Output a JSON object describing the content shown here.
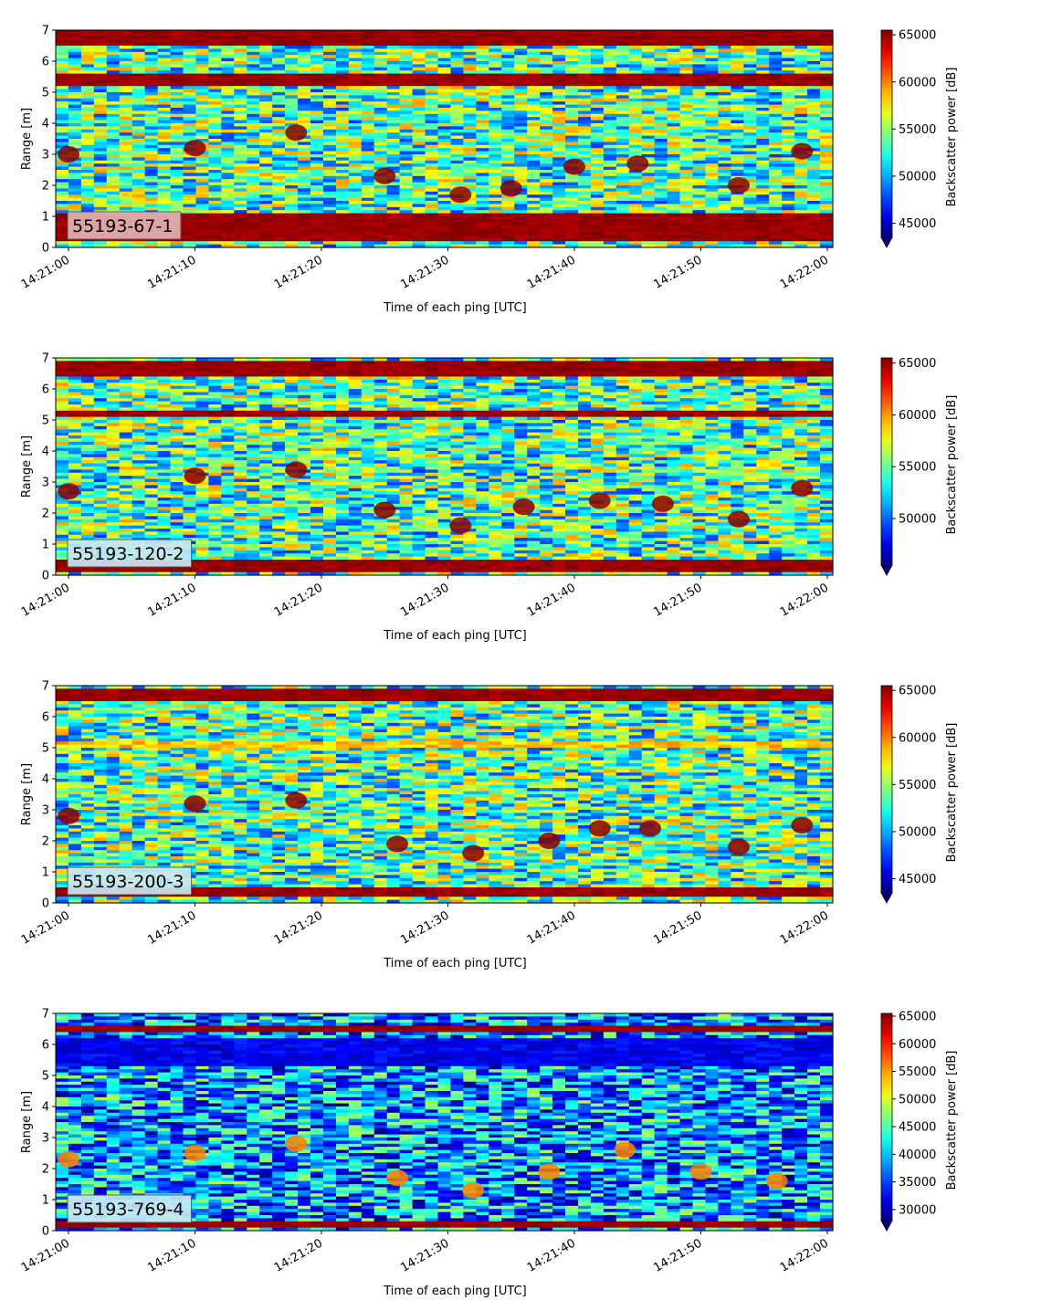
{
  "figure": {
    "x_axis_label": "Time of each ping [UTC]",
    "y_axis_label": "Range [m]",
    "colorbar_label": "Backscatter power [dB]",
    "colormap": "jet",
    "x_tick_labels": [
      "14:21:00",
      "14:21:10",
      "14:21:20",
      "14:21:30",
      "14:21:40",
      "14:21:50",
      "14:22:00"
    ],
    "y_tick_labels": [
      "0",
      "1",
      "2",
      "3",
      "4",
      "5",
      "6",
      "7"
    ]
  },
  "chart_data": [
    {
      "type": "heatmap",
      "label": "55193-67-1",
      "label_box_color": "#e2b3b3",
      "xlabel": "Time of each ping [UTC]",
      "ylabel": "Range [m]",
      "xlim": [
        "14:21:00",
        "14:22:00"
      ],
      "ylim": [
        0,
        7
      ],
      "colorbar": {
        "label": "Backscatter power [dB]",
        "min": 43500,
        "max": 65500,
        "ticks": [
          45000,
          50000,
          55000,
          60000,
          65000
        ],
        "extend": "min"
      },
      "bands": [
        {
          "range_m": [
            0.25,
            1.1
          ],
          "level": "high",
          "description_value": 65000
        },
        {
          "range_m": [
            5.2,
            5.6
          ],
          "level": "high",
          "description_value": 64000
        },
        {
          "range_m": [
            6.55,
            7.0
          ],
          "level": "high",
          "description_value": 65000
        }
      ],
      "scatter_layer": [
        {
          "time": "14:21:00",
          "range": 3.0
        },
        {
          "time": "14:21:10",
          "range": 3.2
        },
        {
          "time": "14:21:18",
          "range": 3.7
        },
        {
          "time": "14:21:25",
          "range": 2.3
        },
        {
          "time": "14:21:31",
          "range": 1.7
        },
        {
          "time": "14:21:35",
          "range": 1.9
        },
        {
          "time": "14:21:40",
          "range": 2.6
        },
        {
          "time": "14:21:45",
          "range": 2.7
        },
        {
          "time": "14:21:53",
          "range": 2.0
        },
        {
          "time": "14:21:58",
          "range": 3.1
        }
      ]
    },
    {
      "type": "heatmap",
      "label": "55193-120-2",
      "label_box_color": "#c8e8f5",
      "xlabel": "Time of each ping [UTC]",
      "ylabel": "Range [m]",
      "xlim": [
        "14:21:00",
        "14:22:00"
      ],
      "ylim": [
        0,
        7
      ],
      "colorbar": {
        "label": "Backscatter power [dB]",
        "min": 45500,
        "max": 65500,
        "ticks": [
          50000,
          55000,
          60000,
          65000
        ],
        "extend": "min"
      },
      "bands": [
        {
          "range_m": [
            0.1,
            0.5
          ],
          "level": "high",
          "description_value": 65000
        },
        {
          "range_m": [
            5.1,
            5.3
          ],
          "level": "high",
          "description_value": 63000
        },
        {
          "range_m": [
            6.4,
            6.9
          ],
          "level": "high",
          "description_value": 65000
        }
      ],
      "scatter_layer": [
        {
          "time": "14:21:00",
          "range": 2.7
        },
        {
          "time": "14:21:10",
          "range": 3.2
        },
        {
          "time": "14:21:18",
          "range": 3.4
        },
        {
          "time": "14:21:25",
          "range": 2.1
        },
        {
          "time": "14:21:31",
          "range": 1.6
        },
        {
          "time": "14:21:36",
          "range": 2.2
        },
        {
          "time": "14:21:42",
          "range": 2.4
        },
        {
          "time": "14:21:47",
          "range": 2.3
        },
        {
          "time": "14:21:53",
          "range": 1.8
        },
        {
          "time": "14:21:58",
          "range": 2.8
        }
      ]
    },
    {
      "type": "heatmap",
      "label": "55193-200-3",
      "label_box_color": "#c8e8f5",
      "xlabel": "Time of each ping [UTC]",
      "ylabel": "Range [m]",
      "xlim": [
        "14:21:00",
        "14:22:00"
      ],
      "ylim": [
        0,
        7
      ],
      "colorbar": {
        "label": "Backscatter power [dB]",
        "min": 43500,
        "max": 65500,
        "ticks": [
          45000,
          50000,
          55000,
          60000,
          65000
        ],
        "extend": "min"
      },
      "bands": [
        {
          "range_m": [
            0.2,
            0.45
          ],
          "level": "high",
          "description_value": 65000
        },
        {
          "range_m": [
            5.0,
            5.2
          ],
          "level": "mid",
          "description_value": 60000
        },
        {
          "range_m": [
            6.5,
            6.9
          ],
          "level": "high",
          "description_value": 65000
        }
      ],
      "scatter_layer": [
        {
          "time": "14:21:00",
          "range": 2.8
        },
        {
          "time": "14:21:10",
          "range": 3.2
        },
        {
          "time": "14:21:18",
          "range": 3.3
        },
        {
          "time": "14:21:26",
          "range": 1.9
        },
        {
          "time": "14:21:32",
          "range": 1.6
        },
        {
          "time": "14:21:38",
          "range": 2.0
        },
        {
          "time": "14:21:42",
          "range": 2.4
        },
        {
          "time": "14:21:46",
          "range": 2.4
        },
        {
          "time": "14:21:53",
          "range": 1.8
        },
        {
          "time": "14:21:58",
          "range": 2.5
        }
      ]
    },
    {
      "type": "heatmap",
      "label": "55193-769-4",
      "label_box_color": "#c8e8f5",
      "xlabel": "Time of each ping [UTC]",
      "ylabel": "Range [m]",
      "xlim": [
        "14:21:00",
        "14:22:00"
      ],
      "ylim": [
        0,
        7
      ],
      "colorbar": {
        "label": "Backscatter power [dB]",
        "min": 28000,
        "max": 65500,
        "ticks": [
          30000,
          35000,
          40000,
          45000,
          50000,
          55000,
          60000,
          65000
        ],
        "extend": "min"
      },
      "bands": [
        {
          "range_m": [
            0.15,
            0.35
          ],
          "level": "high",
          "description_value": 60000
        },
        {
          "range_m": [
            6.4,
            6.6
          ],
          "level": "high",
          "description_value": 62000
        },
        {
          "range_m": [
            5.3,
            6.2
          ],
          "level": "low",
          "description_value": 30000
        }
      ],
      "scatter_layer": [
        {
          "time": "14:21:00",
          "range": 2.3
        },
        {
          "time": "14:21:10",
          "range": 2.5
        },
        {
          "time": "14:21:18",
          "range": 2.8
        },
        {
          "time": "14:21:26",
          "range": 1.7
        },
        {
          "time": "14:21:32",
          "range": 1.3
        },
        {
          "time": "14:21:38",
          "range": 1.9
        },
        {
          "time": "14:21:44",
          "range": 2.6
        },
        {
          "time": "14:21:50",
          "range": 1.9
        },
        {
          "time": "14:21:56",
          "range": 1.6
        }
      ]
    }
  ]
}
